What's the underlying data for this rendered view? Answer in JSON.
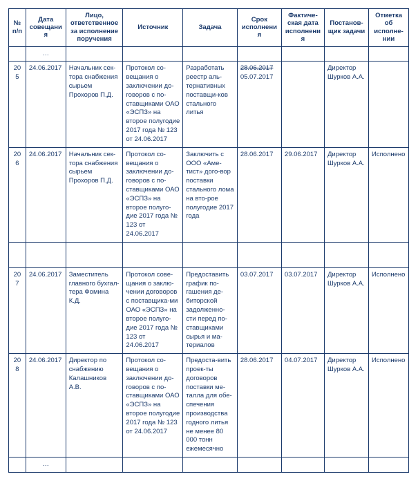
{
  "headers": {
    "num": "№ п/п",
    "date": "Дата совещания",
    "responsible": "Лицо, ответственное за исполнение поручения",
    "source": "Источник",
    "task": "Задача",
    "due": "Срок исполнения",
    "actual": "Фактиче-ская дата исполнения",
    "setby": "Постанов-щик задачи",
    "status": "Отметка об исполне-нии"
  },
  "ellipsis": "…",
  "rows": [
    {
      "num": "205",
      "date": "24.06.2017",
      "responsible": "Начальник сек-тора снабжения сырьем Прохоров П.Д.",
      "source": "Протокол со-вещания о заключении до-говоров с по-ставщиками ОАО «ЭСПЗ» на второе полугодие 2017 года № 123 от 24.06.2017",
      "task": "Разработать реестр аль-тернативных поставщи-ков стального литья",
      "due_strike": "28.06.2017",
      "due_new": "05.07.2017",
      "actual": "",
      "setby": "Директор Шурков А.А.",
      "status": ""
    },
    {
      "num": "206",
      "date": "24.06.2017",
      "responsible": "Начальник сек-тора снабжения сырьем Прохоров П.Д.",
      "source": "Протокол со-вещания о заключении до-говоров с по-ставщиками ОАО «ЭСПЗ» на второе полуго-дие 2017 года № 123 от 24.06.2017",
      "task": "Заключить с ООО «Аме-тист» дого-вор поставки стального лома на вто-рое полугодие 2017 года",
      "due": "28.06.2017",
      "actual": "29.06.2017",
      "setby": "Директор Шурков А.А.",
      "status": "Исполнено"
    },
    {
      "num": "207",
      "date": "24.06.2017",
      "responsible": "Заместитель главного бухгал-тера Фомина К.Д.",
      "source": "Протокол сове-щания о заклю-чении договоров с поставщика-ми ОАО «ЭСПЗ» на второе полуго-дие 2017 года № 123 от 24.06.2017",
      "task": "Предоставить график по-гашения де-биторской задолженно-сти перед по-ставщиками сырья и ма-териалов",
      "due": "03.07.2017",
      "actual": "03.07.2017",
      "setby": "Директор Шурков А.А.",
      "status": "Исполнено"
    },
    {
      "num": "208",
      "date": "24.06.2017",
      "responsible": "Директор по снабжению Калашников А.В.",
      "source": "Протокол со-вещания о заключении до-говоров с по-ставщиками ОАО «ЭСПЗ» на второе полугодие 2017 года № 123 от 24.06.2017",
      "task": "Предоста-вить проек-ты договоров поставки ме-талла для обе-спечения производства годного литья не менее 80 000 тонн ежемесячно",
      "due": "28.06.2017",
      "actual": "04.07.2017",
      "setby": "Директор Шурков А.А.",
      "status": "Исполнено"
    }
  ]
}
